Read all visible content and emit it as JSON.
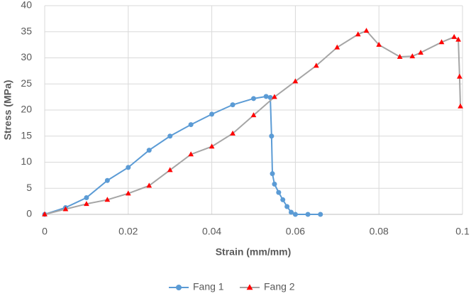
{
  "chart_data": {
    "type": "line",
    "x_label": "Strain (mm/mm)",
    "y_label": "Stress (MPa)",
    "xlim": [
      0,
      0.1
    ],
    "ylim": [
      0,
      40
    ],
    "xticks": [
      0,
      0.02,
      0.04,
      0.06,
      0.08,
      0.1
    ],
    "yticks": [
      0,
      5,
      10,
      15,
      20,
      25,
      30,
      35,
      40
    ],
    "grid": true,
    "legend": "bottom",
    "series": [
      {
        "name": "Fang 1",
        "color": "#5b9bd5",
        "line_color": "#5b9bd5",
        "marker": "circle",
        "x": [
          0,
          0.005,
          0.01,
          0.015,
          0.02,
          0.025,
          0.03,
          0.035,
          0.04,
          0.045,
          0.05,
          0.053,
          0.054,
          0.0543,
          0.0545,
          0.055,
          0.056,
          0.057,
          0.058,
          0.059,
          0.06,
          0.063,
          0.066
        ],
        "values": [
          0,
          1.3,
          3.2,
          6.5,
          9,
          12.3,
          15,
          17.2,
          19.2,
          21,
          22.2,
          22.6,
          22.4,
          15,
          7.8,
          5.8,
          4.2,
          2.8,
          1.5,
          0.4,
          0,
          0,
          0
        ]
      },
      {
        "name": "Fang 2",
        "color": "#ff0000",
        "line_color": "#a5a5a5",
        "marker": "triangle",
        "x": [
          0,
          0.005,
          0.01,
          0.015,
          0.02,
          0.025,
          0.03,
          0.035,
          0.04,
          0.045,
          0.05,
          0.055,
          0.06,
          0.065,
          0.07,
          0.075,
          0.077,
          0.08,
          0.085,
          0.088,
          0.09,
          0.095,
          0.098,
          0.099,
          0.0993,
          0.0995
        ],
        "values": [
          0,
          1,
          2,
          2.8,
          4,
          5.5,
          8.5,
          11.5,
          13,
          15.5,
          19,
          22.5,
          25.5,
          28.5,
          32,
          34.5,
          35.2,
          32.5,
          30.2,
          30.3,
          31,
          33,
          34,
          33.5,
          26.4,
          20.7
        ]
      }
    ]
  }
}
